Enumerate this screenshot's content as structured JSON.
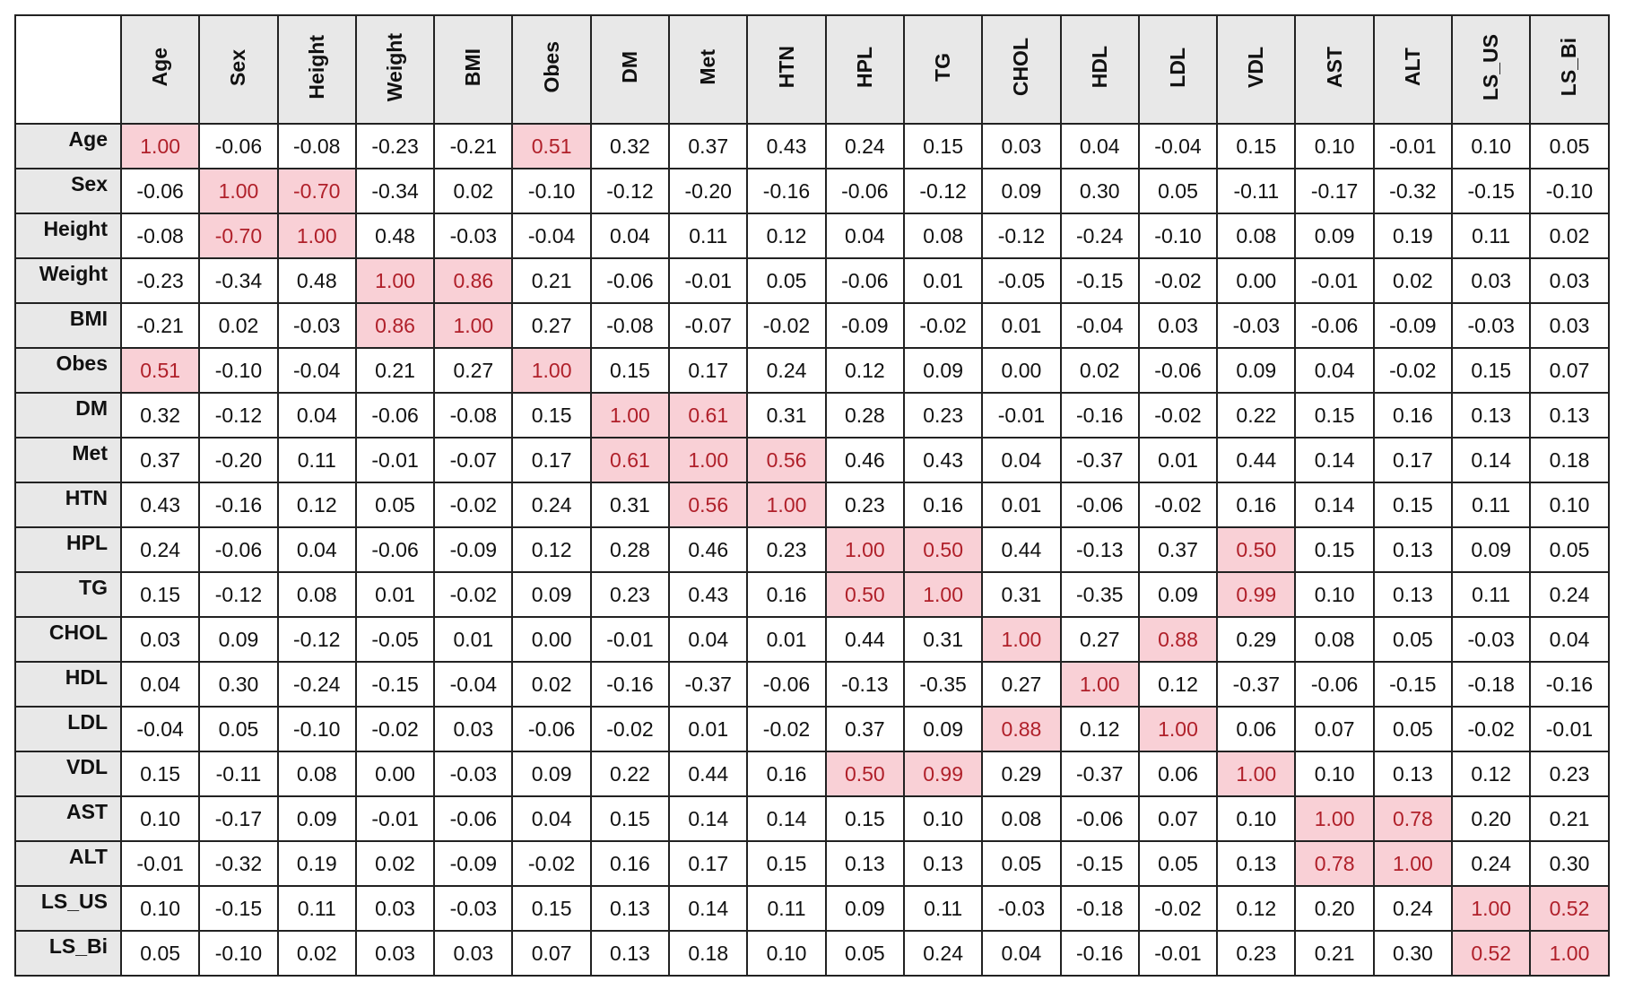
{
  "chart_data": {
    "type": "heatmap",
    "variables": [
      "Age",
      "Sex",
      "Height",
      "Weight",
      "BMI",
      "Obes",
      "DM",
      "Met",
      "HTN",
      "HPL",
      "TG",
      "CHOL",
      "HDL",
      "LDL",
      "VDL",
      "AST",
      "ALT",
      "LS_US",
      "LS_Bi"
    ],
    "value_format": "2dp",
    "highlight_rule": "absolute value >= 0.5",
    "colors": {
      "highlight_fill": "#f9d0d6",
      "highlight_text": "#b0202a",
      "header_fill": "#e8e8e8",
      "grid": "#222222"
    },
    "values": [
      [
        1.0,
        -0.06,
        -0.08,
        -0.23,
        -0.21,
        0.51,
        0.32,
        0.37,
        0.43,
        0.24,
        0.15,
        0.03,
        0.04,
        -0.04,
        0.15,
        0.1,
        -0.01,
        0.1,
        0.05
      ],
      [
        -0.06,
        1.0,
        -0.7,
        -0.34,
        0.02,
        -0.1,
        -0.12,
        -0.2,
        -0.16,
        -0.06,
        -0.12,
        0.09,
        0.3,
        0.05,
        -0.11,
        -0.17,
        -0.32,
        -0.15,
        -0.1
      ],
      [
        -0.08,
        -0.7,
        1.0,
        0.48,
        -0.03,
        -0.04,
        0.04,
        0.11,
        0.12,
        0.04,
        0.08,
        -0.12,
        -0.24,
        -0.1,
        0.08,
        0.09,
        0.19,
        0.11,
        0.02
      ],
      [
        -0.23,
        -0.34,
        0.48,
        1.0,
        0.86,
        0.21,
        -0.06,
        -0.01,
        0.05,
        -0.06,
        0.01,
        -0.05,
        -0.15,
        -0.02,
        0.0,
        -0.01,
        0.02,
        0.03,
        0.03
      ],
      [
        -0.21,
        0.02,
        -0.03,
        0.86,
        1.0,
        0.27,
        -0.08,
        -0.07,
        -0.02,
        -0.09,
        -0.02,
        0.01,
        -0.04,
        0.03,
        -0.03,
        -0.06,
        -0.09,
        -0.03,
        0.03
      ],
      [
        0.51,
        -0.1,
        -0.04,
        0.21,
        0.27,
        1.0,
        0.15,
        0.17,
        0.24,
        0.12,
        0.09,
        0.0,
        0.02,
        -0.06,
        0.09,
        0.04,
        -0.02,
        0.15,
        0.07
      ],
      [
        0.32,
        -0.12,
        0.04,
        -0.06,
        -0.08,
        0.15,
        1.0,
        0.61,
        0.31,
        0.28,
        0.23,
        -0.01,
        -0.16,
        -0.02,
        0.22,
        0.15,
        0.16,
        0.13,
        0.13
      ],
      [
        0.37,
        -0.2,
        0.11,
        -0.01,
        -0.07,
        0.17,
        0.61,
        1.0,
        0.56,
        0.46,
        0.43,
        0.04,
        -0.37,
        0.01,
        0.44,
        0.14,
        0.17,
        0.14,
        0.18
      ],
      [
        0.43,
        -0.16,
        0.12,
        0.05,
        -0.02,
        0.24,
        0.31,
        0.56,
        1.0,
        0.23,
        0.16,
        0.01,
        -0.06,
        -0.02,
        0.16,
        0.14,
        0.15,
        0.11,
        0.1
      ],
      [
        0.24,
        -0.06,
        0.04,
        -0.06,
        -0.09,
        0.12,
        0.28,
        0.46,
        0.23,
        1.0,
        0.5,
        0.44,
        -0.13,
        0.37,
        0.5,
        0.15,
        0.13,
        0.09,
        0.05
      ],
      [
        0.15,
        -0.12,
        0.08,
        0.01,
        -0.02,
        0.09,
        0.23,
        0.43,
        0.16,
        0.5,
        1.0,
        0.31,
        -0.35,
        0.09,
        0.99,
        0.1,
        0.13,
        0.11,
        0.24
      ],
      [
        0.03,
        0.09,
        -0.12,
        -0.05,
        0.01,
        0.0,
        -0.01,
        0.04,
        0.01,
        0.44,
        0.31,
        1.0,
        0.27,
        0.88,
        0.29,
        0.08,
        0.05,
        -0.03,
        0.04
      ],
      [
        0.04,
        0.3,
        -0.24,
        -0.15,
        -0.04,
        0.02,
        -0.16,
        -0.37,
        -0.06,
        -0.13,
        -0.35,
        0.27,
        1.0,
        0.12,
        -0.37,
        -0.06,
        -0.15,
        -0.18,
        -0.16
      ],
      [
        -0.04,
        0.05,
        -0.1,
        -0.02,
        0.03,
        -0.06,
        -0.02,
        0.01,
        -0.02,
        0.37,
        0.09,
        0.88,
        0.12,
        1.0,
        0.06,
        0.07,
        0.05,
        -0.02,
        -0.01
      ],
      [
        0.15,
        -0.11,
        0.08,
        0.0,
        -0.03,
        0.09,
        0.22,
        0.44,
        0.16,
        0.5,
        0.99,
        0.29,
        -0.37,
        0.06,
        1.0,
        0.1,
        0.13,
        0.12,
        0.23
      ],
      [
        0.1,
        -0.17,
        0.09,
        -0.01,
        -0.06,
        0.04,
        0.15,
        0.14,
        0.14,
        0.15,
        0.1,
        0.08,
        -0.06,
        0.07,
        0.1,
        1.0,
        0.78,
        0.2,
        0.21
      ],
      [
        -0.01,
        -0.32,
        0.19,
        0.02,
        -0.09,
        -0.02,
        0.16,
        0.17,
        0.15,
        0.13,
        0.13,
        0.05,
        -0.15,
        0.05,
        0.13,
        0.78,
        1.0,
        0.24,
        0.3
      ],
      [
        0.1,
        -0.15,
        0.11,
        0.03,
        -0.03,
        0.15,
        0.13,
        0.14,
        0.11,
        0.09,
        0.11,
        -0.03,
        -0.18,
        -0.02,
        0.12,
        0.2,
        0.24,
        1.0,
        0.52
      ],
      [
        0.05,
        -0.1,
        0.02,
        0.03,
        0.03,
        0.07,
        0.13,
        0.18,
        0.1,
        0.05,
        0.24,
        0.04,
        -0.16,
        -0.01,
        0.23,
        0.21,
        0.3,
        0.52,
        1.0
      ]
    ]
  }
}
